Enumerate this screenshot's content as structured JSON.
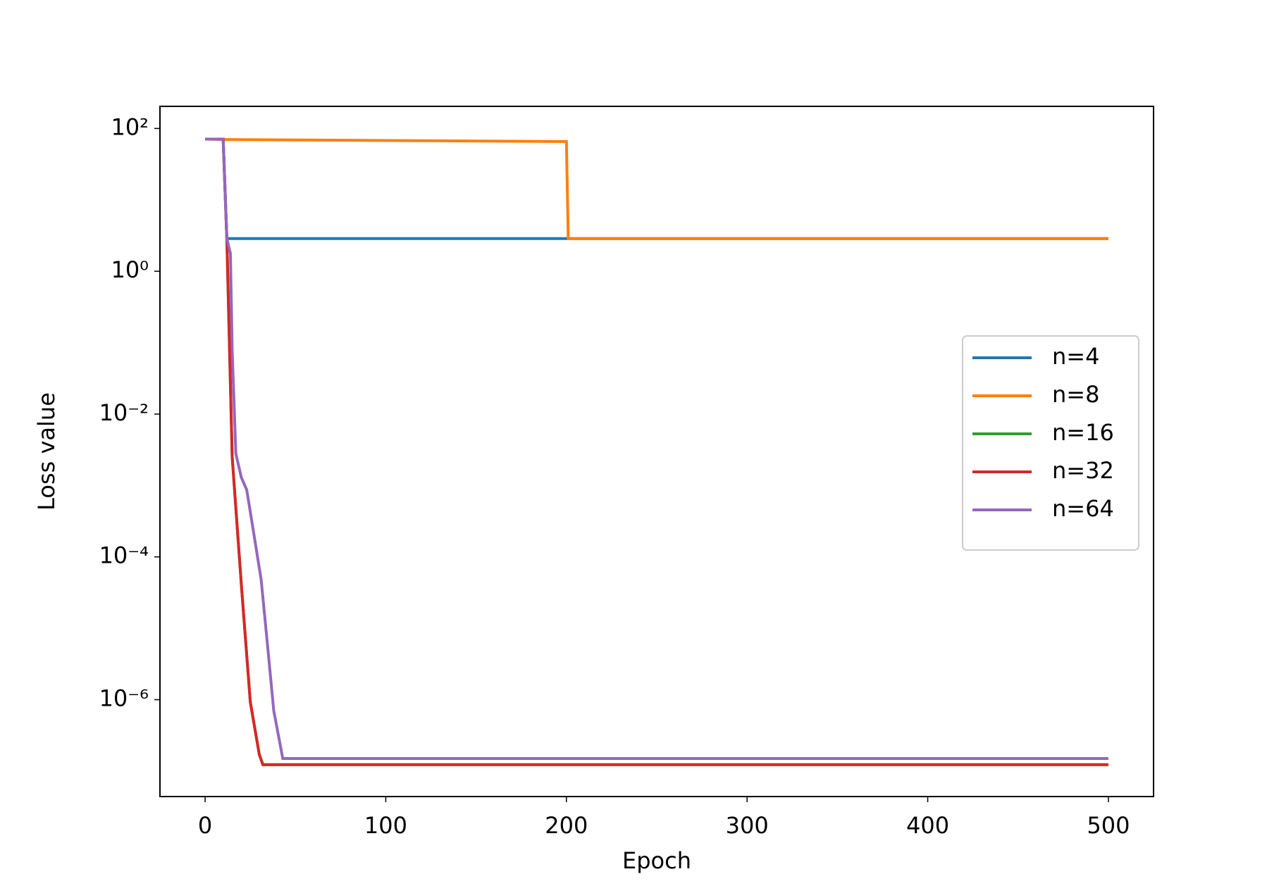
{
  "chart_data": {
    "type": "line",
    "x_label": "Epoch",
    "y_label": "Loss value",
    "xlim": [
      -25,
      525
    ],
    "xticks": [
      0,
      100,
      200,
      300,
      400,
      500
    ],
    "ylim": [
      4.4e-08,
      204
    ],
    "log_y": true,
    "yticks": [
      {
        "value": 1e-06,
        "label": "10⁻⁶"
      },
      {
        "value": 0.0001,
        "label": "10⁻⁴"
      },
      {
        "value": 0.01,
        "label": "10⁻²"
      },
      {
        "value": 1,
        "label": "10⁰"
      },
      {
        "value": 100,
        "label": "10²"
      }
    ],
    "legend": "right",
    "series": [
      {
        "name": "n=4",
        "color": "#1f77b4",
        "x": [
          0,
          10,
          12,
          200,
          500
        ],
        "values": [
          71,
          71,
          2.87,
          2.87,
          2.87
        ]
      },
      {
        "name": "n=8",
        "color": "#ff7f0e",
        "x": [
          0,
          10,
          200,
          201,
          500
        ],
        "values": [
          71,
          70,
          65.6,
          2.87,
          2.87
        ]
      },
      {
        "name": "n=16",
        "color": "#2ca02c",
        "x": [
          0,
          10,
          12,
          15,
          20,
          25,
          30,
          32,
          500
        ],
        "values": [
          71,
          71,
          2.87,
          0.0025,
          4.2e-05,
          9.3e-07,
          1.7e-07,
          1.23e-07,
          1.23e-07
        ]
      },
      {
        "name": "n=32",
        "color": "#d62728",
        "x": [
          0,
          10,
          12,
          15,
          20,
          25,
          30,
          32,
          500
        ],
        "values": [
          71,
          71,
          2.87,
          0.0025,
          4.2e-05,
          9.3e-07,
          1.7e-07,
          1.23e-07,
          1.23e-07
        ]
      },
      {
        "name": "n=64",
        "color": "#9467bd",
        "x": [
          0,
          10,
          12,
          14,
          15,
          17,
          20,
          23,
          26,
          31,
          35,
          38,
          43,
          500
        ],
        "values": [
          71,
          71,
          2.87,
          1.78,
          0.076,
          0.0028,
          0.0013,
          0.00087,
          0.0003,
          4.8e-05,
          4.4e-06,
          7e-07,
          1.5e-07,
          1.5e-07
        ]
      }
    ]
  }
}
